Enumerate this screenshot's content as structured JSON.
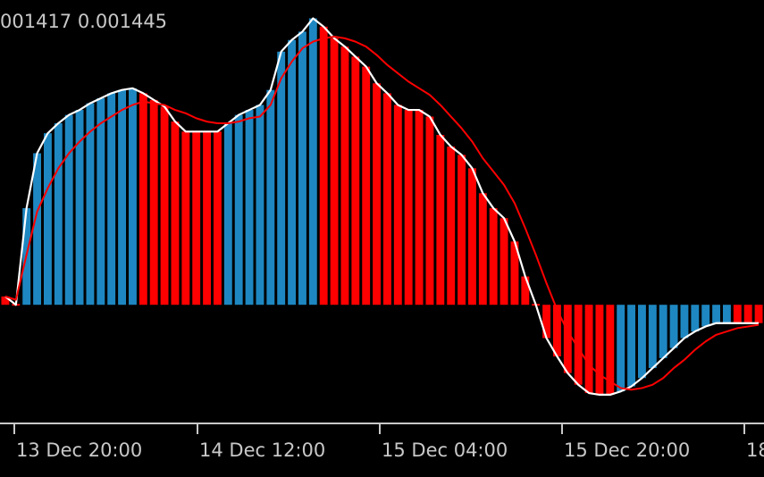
{
  "header": {
    "values_text": "001417 0.001445"
  },
  "chart_data": {
    "type": "bar",
    "title": "",
    "xlabel": "",
    "ylabel": "",
    "x_tick_labels": [
      "13 Dec 20:00",
      "14 Dec 12:00",
      "15 Dec 04:00",
      "15 Dec 20:00",
      "18"
    ],
    "ylim": [
      -0.00068,
      0.00183
    ],
    "colors": {
      "rising": "#1e87c1",
      "falling": "#ff0000",
      "main_line": "#ffffff",
      "signal_line": "#ff0000"
    },
    "series": [
      {
        "kind": "histogram",
        "values": [
          5e-05,
          0.0,
          0.00058,
          0.00091,
          0.00103,
          0.00109,
          0.00114,
          0.00117,
          0.00121,
          0.00124,
          0.00127,
          0.00129,
          0.0013,
          0.00127,
          0.00123,
          0.00119,
          0.0011,
          0.00104,
          0.00104,
          0.00104,
          0.00104,
          0.00109,
          0.00114,
          0.00117,
          0.0012,
          0.00129,
          0.00152,
          0.00159,
          0.00164,
          0.00172,
          0.00167,
          0.0016,
          0.00155,
          0.00149,
          0.00143,
          0.00133,
          0.00127,
          0.0012,
          0.00117,
          0.00117,
          0.00113,
          0.00102,
          0.00095,
          0.0009,
          0.00082,
          0.00067,
          0.00058,
          0.00052,
          0.00038,
          0.00017,
          0.0,
          -0.0002,
          -0.00031,
          -0.00041,
          -0.00048,
          -0.00053,
          -0.00054,
          -0.00054,
          -0.00052,
          -0.00049,
          -0.00044,
          -0.00038,
          -0.00032,
          -0.00026,
          -0.0002,
          -0.00016,
          -0.00013,
          -0.00011,
          -0.00011,
          -0.00011,
          -0.00011,
          -0.00011
        ],
        "direction": [
          "falling",
          "falling",
          "rising",
          "rising",
          "rising",
          "rising",
          "rising",
          "rising",
          "rising",
          "rising",
          "rising",
          "rising",
          "rising",
          "falling",
          "falling",
          "falling",
          "falling",
          "falling",
          "falling",
          "falling",
          "falling",
          "rising",
          "rising",
          "rising",
          "rising",
          "rising",
          "rising",
          "rising",
          "rising",
          "rising",
          "falling",
          "falling",
          "falling",
          "falling",
          "falling",
          "falling",
          "falling",
          "falling",
          "falling",
          "falling",
          "falling",
          "falling",
          "falling",
          "falling",
          "falling",
          "falling",
          "falling",
          "falling",
          "falling",
          "falling",
          "falling",
          "falling",
          "falling",
          "falling",
          "falling",
          "falling",
          "falling",
          "falling",
          "rising",
          "rising",
          "rising",
          "rising",
          "rising",
          "rising",
          "rising",
          "rising",
          "rising",
          "rising",
          "rising",
          "falling",
          "falling",
          "falling"
        ]
      },
      {
        "kind": "line",
        "values": [
          5e-05,
          3e-05,
          0.0003,
          0.00056,
          0.0007,
          0.00082,
          0.00091,
          0.00098,
          0.00104,
          0.00109,
          0.00113,
          0.00117,
          0.0012,
          0.00122,
          0.00121,
          0.0012,
          0.00117,
          0.00115,
          0.00112,
          0.0011,
          0.00109,
          0.00109,
          0.0011,
          0.00112,
          0.00113,
          0.0012,
          0.00136,
          0.00146,
          0.00154,
          0.00158,
          0.0016,
          0.00161,
          0.0016,
          0.00158,
          0.00155,
          0.0015,
          0.00144,
          0.00139,
          0.00134,
          0.0013,
          0.00126,
          0.0012,
          0.00113,
          0.00106,
          0.00098,
          0.00088,
          0.0008,
          0.00072,
          0.00061,
          0.00046,
          0.0003,
          0.00013,
          -3e-05,
          -0.00016,
          -0.00026,
          -0.00036,
          -0.00042,
          -0.00046,
          -0.0005,
          -0.00051,
          -0.0005,
          -0.00048,
          -0.00044,
          -0.00038,
          -0.00033,
          -0.00027,
          -0.00022,
          -0.00018,
          -0.00016,
          -0.00014,
          -0.00013,
          -0.00012
        ]
      }
    ]
  }
}
